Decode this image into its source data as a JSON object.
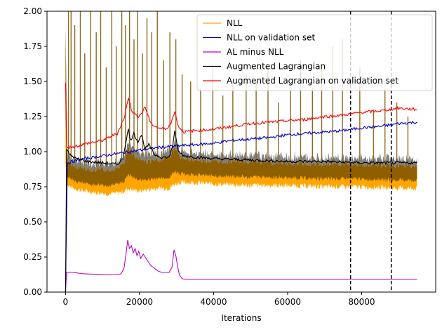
{
  "chart_data": {
    "type": "line",
    "title": "",
    "xlabel": "Iterations",
    "ylabel": "",
    "xlim": [
      -5000,
      100000
    ],
    "ylim": [
      0,
      2
    ],
    "x_ticks": [
      0,
      20000,
      40000,
      60000,
      80000
    ],
    "x_tick_labels": [
      "0",
      "20000",
      "40000",
      "60000",
      "80000"
    ],
    "y_ticks": [
      0,
      0.25,
      0.5,
      0.75,
      1.0,
      1.25,
      1.5,
      1.75,
      2.0
    ],
    "y_tick_labels": [
      "0.00",
      "0.25",
      "0.50",
      "0.75",
      "1.00",
      "1.25",
      "1.50",
      "1.75",
      "2.00"
    ],
    "grid": false,
    "legend_position": "top-right",
    "vertical_lines": [
      {
        "x": 77000,
        "color": "#000000",
        "style": "dashed"
      },
      {
        "x": 88000,
        "color": "#000000",
        "style": "dashed"
      }
    ],
    "series": [
      {
        "name": "NLL",
        "color": "#ffa500",
        "band": true,
        "x": [
          0,
          500,
          2000,
          5000,
          8000,
          12000,
          15000,
          16000,
          17000,
          18000,
          20000,
          22000,
          25000,
          28000,
          29500,
          31000,
          35000,
          40000,
          50000,
          60000,
          70000,
          80000,
          90000,
          95000
        ],
        "lower": [
          0.9,
          0.74,
          0.72,
          0.7,
          0.69,
          0.68,
          0.69,
          0.7,
          0.72,
          0.71,
          0.7,
          0.71,
          0.72,
          0.72,
          0.75,
          0.76,
          0.76,
          0.75,
          0.74,
          0.74,
          0.73,
          0.73,
          0.72,
          0.72
        ],
        "upper": [
          1.85,
          0.95,
          0.92,
          0.9,
          0.89,
          0.89,
          0.92,
          0.95,
          1.05,
          1.0,
          0.97,
          0.95,
          0.96,
          0.98,
          1.05,
          0.98,
          0.96,
          0.95,
          0.95,
          0.94,
          0.93,
          0.93,
          0.92,
          0.92
        ],
        "spikes": [
          800,
          1500,
          2500,
          4000,
          5200,
          6800,
          8300,
          9500,
          11000,
          12500,
          13700,
          15200,
          16200,
          17300,
          18500,
          19500,
          20800,
          22000,
          23300,
          24800,
          26500,
          28200,
          29800,
          31500,
          33800,
          36500,
          39800,
          42500,
          45200,
          48800,
          51500,
          54700,
          57500,
          60800,
          63500,
          66700,
          69200,
          72200,
          74800,
          79500,
          83200,
          86300,
          89500,
          92500
        ],
        "spike_values": [
          2.0,
          2.0,
          1.9,
          2.0,
          1.7,
          2.0,
          1.85,
          2.0,
          1.6,
          2.0,
          1.75,
          2.0,
          1.9,
          2.0,
          1.8,
          2.0,
          1.7,
          1.95,
          1.85,
          2.0,
          1.65,
          1.85,
          1.8,
          1.55,
          1.5,
          1.45,
          1.6,
          1.4,
          1.5,
          1.55,
          1.5,
          1.6,
          1.35,
          1.5,
          1.65,
          1.45,
          1.6,
          1.75,
          1.8,
          1.6,
          1.3,
          1.45,
          1.35,
          1.25
        ]
      },
      {
        "name": "NLL on validation set",
        "color": "#0000cd",
        "x": [
          0,
          500,
          2000,
          5000,
          10000,
          15000,
          20000,
          25000,
          30000,
          35000,
          40000,
          45000,
          50000,
          55000,
          60000,
          65000,
          70000,
          75000,
          80000,
          85000,
          90000,
          95000
        ],
        "y": [
          0.0,
          0.92,
          0.93,
          0.95,
          0.97,
          0.99,
          1.01,
          1.03,
          1.04,
          1.05,
          1.06,
          1.08,
          1.09,
          1.1,
          1.12,
          1.13,
          1.14,
          1.15,
          1.17,
          1.18,
          1.2,
          1.21
        ]
      },
      {
        "name": "AL minus NLL",
        "color": "#bf00bf",
        "x": [
          0,
          300,
          2000,
          5000,
          10000,
          14000,
          15000,
          15800,
          16300,
          16800,
          17300,
          17800,
          18300,
          18800,
          19300,
          19800,
          20300,
          21000,
          22000,
          23000,
          24000,
          25000,
          26000,
          27000,
          28000,
          28800,
          29300,
          29800,
          30300,
          30800,
          31500,
          33000,
          40000,
          50000,
          60000,
          70000,
          80000,
          90000,
          95000
        ],
        "y": [
          0.0,
          0.14,
          0.14,
          0.13,
          0.125,
          0.125,
          0.13,
          0.17,
          0.26,
          0.37,
          0.31,
          0.33,
          0.28,
          0.31,
          0.26,
          0.29,
          0.24,
          0.27,
          0.23,
          0.19,
          0.17,
          0.15,
          0.14,
          0.14,
          0.14,
          0.18,
          0.3,
          0.26,
          0.18,
          0.12,
          0.095,
          0.09,
          0.09,
          0.09,
          0.09,
          0.09,
          0.09,
          0.09,
          0.09
        ]
      },
      {
        "name": "Augmented Lagrangian",
        "color": "#000000",
        "x": [
          0,
          300,
          1000,
          3000,
          6000,
          10000,
          14000,
          15500,
          16500,
          17000,
          17500,
          18500,
          19500,
          20500,
          21500,
          22500,
          24000,
          26000,
          28000,
          29000,
          29500,
          30500,
          32000,
          36000,
          40000,
          50000,
          60000,
          70000,
          80000,
          90000,
          95000
        ],
        "y": [
          0.0,
          1.02,
          0.98,
          0.95,
          0.93,
          0.92,
          0.91,
          0.95,
          1.1,
          1.16,
          1.08,
          1.13,
          1.07,
          1.12,
          1.02,
          1.05,
          0.98,
          0.96,
          0.96,
          1.05,
          1.14,
          1.0,
          0.97,
          0.96,
          0.95,
          0.94,
          0.93,
          0.93,
          0.92,
          0.92,
          0.92
        ]
      },
      {
        "name": "Augmented Lagrangian on validation set",
        "color": "#ff0000",
        "x": [
          0,
          300,
          1000,
          3000,
          6000,
          10000,
          14000,
          16000,
          17000,
          17800,
          18500,
          19500,
          20500,
          21500,
          23000,
          25000,
          27000,
          28500,
          29500,
          30500,
          32000,
          35000,
          40000,
          45000,
          50000,
          55000,
          60000,
          65000,
          70000,
          75000,
          80000,
          85000,
          90000,
          95000
        ],
        "y": [
          1.49,
          1.04,
          1.03,
          1.04,
          1.06,
          1.08,
          1.13,
          1.25,
          1.39,
          1.3,
          1.27,
          1.25,
          1.27,
          1.32,
          1.2,
          1.17,
          1.16,
          1.2,
          1.29,
          1.18,
          1.14,
          1.15,
          1.16,
          1.18,
          1.2,
          1.21,
          1.22,
          1.23,
          1.25,
          1.26,
          1.28,
          1.29,
          1.31,
          1.3
        ]
      }
    ]
  }
}
